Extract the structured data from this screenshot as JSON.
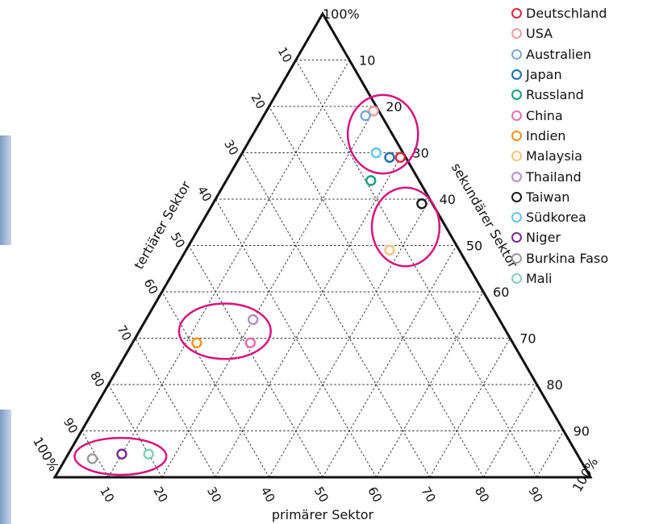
{
  "chart_data": {
    "type": "scatter",
    "subtype": "ternary",
    "title": "",
    "axes": {
      "primary": {
        "label": "primärer Sektor",
        "ticks": [
          "10",
          "20",
          "30",
          "40",
          "50",
          "60",
          "70",
          "80",
          "90"
        ],
        "end_label": "100%"
      },
      "secondary": {
        "label": "sekundärer Sektor",
        "ticks": [
          "10",
          "20",
          "30",
          "40",
          "50",
          "60",
          "70",
          "80",
          "90"
        ],
        "end_label": "100%"
      },
      "tertiary": {
        "label": "tertiärer Sektor",
        "ticks": [
          "10",
          "20",
          "30",
          "40",
          "50",
          "60",
          "70",
          "80",
          "90"
        ],
        "end_label": "100%"
      }
    },
    "grid": true,
    "legend_position": "top-right",
    "series": [
      {
        "name": "Deutschland",
        "color": "#e5283c",
        "primary": 1,
        "secondary": 30,
        "tertiary": 69
      },
      {
        "name": "USA",
        "color": "#f29aa0",
        "primary": 1,
        "secondary": 20,
        "tertiary": 79
      },
      {
        "name": "Australien",
        "color": "#7ea7d6",
        "primary": 3,
        "secondary": 19,
        "tertiary": 78
      },
      {
        "name": "Japan",
        "color": "#1b6fae",
        "primary": 3,
        "secondary": 28,
        "tertiary": 69
      },
      {
        "name": "Russland",
        "color": "#17a084",
        "primary": 9,
        "secondary": 27,
        "tertiary": 64
      },
      {
        "name": "China",
        "color": "#e86fa8",
        "primary": 49,
        "secondary": 22,
        "tertiary": 29
      },
      {
        "name": "Indien",
        "color": "#f0951a",
        "primary": 59,
        "secondary": 12,
        "tertiary": 29
      },
      {
        "name": "Malaysia",
        "color": "#f8c37e",
        "primary": 13,
        "secondary": 38,
        "tertiary": 49
      },
      {
        "name": "Thailand",
        "color": "#b58ec6",
        "primary": 46,
        "secondary": 20,
        "tertiary": 34
      },
      {
        "name": "Taiwan",
        "color": "#1a1a1a",
        "primary": 2,
        "secondary": 39,
        "tertiary": 59
      },
      {
        "name": "Südkorea",
        "color": "#63c6ea",
        "primary": 5,
        "secondary": 25,
        "tertiary": 70
      },
      {
        "name": "Niger",
        "color": "#7a2a94",
        "primary": 85,
        "secondary": 10,
        "tertiary": 5
      },
      {
        "name": "Burkina Faso",
        "color": "#9a9a9a",
        "primary": 91,
        "secondary": 5,
        "tertiary": 4
      },
      {
        "name": "Mali",
        "color": "#7fd0b6",
        "primary": 80,
        "secondary": 15,
        "tertiary": 5
      }
    ],
    "highlight_groups": [
      {
        "members": [
          "Taiwan",
          "Malaysia"
        ]
      },
      {
        "members": [
          "Deutschland",
          "Japan",
          "Südkorea",
          "USA",
          "Australien"
        ]
      },
      {
        "members": [
          "Thailand",
          "China",
          "Indien"
        ]
      },
      {
        "members": [
          "Mali",
          "Niger",
          "Burkina Faso"
        ]
      }
    ],
    "colors": {
      "frame": "#111111",
      "grid": "#333333",
      "highlight": "#d6137e",
      "edge_strip": "#7f9bc4"
    }
  }
}
